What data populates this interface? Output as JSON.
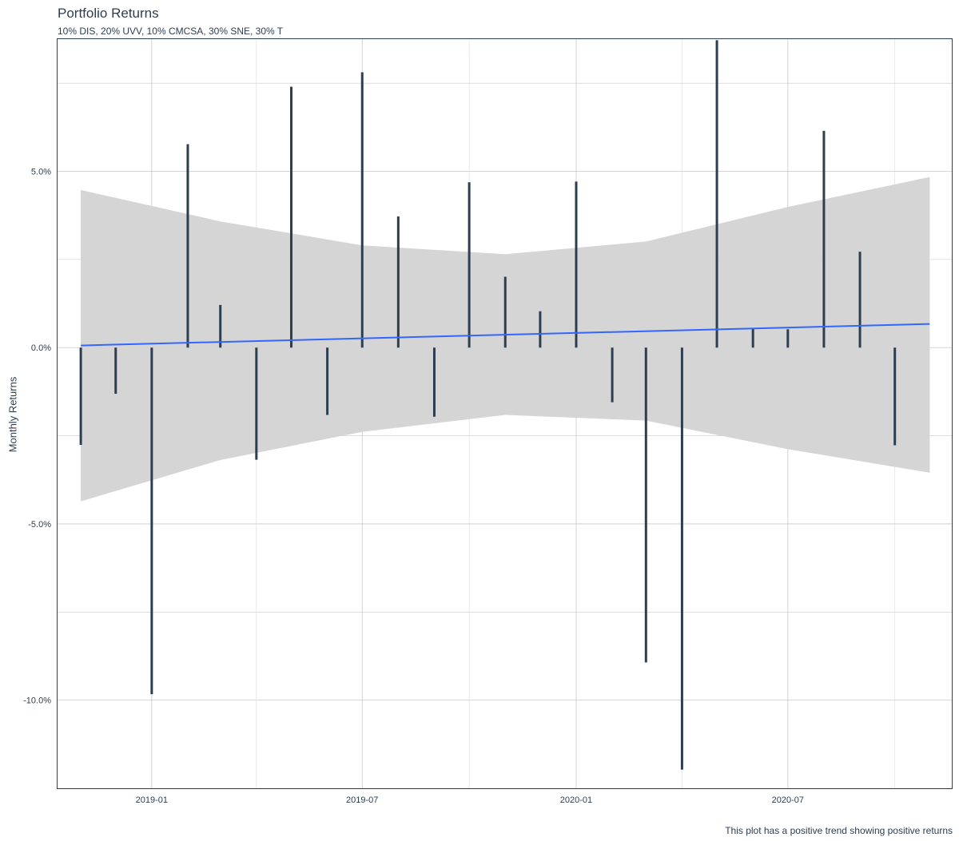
{
  "chart_data": {
    "type": "bar",
    "title": "Portfolio Returns",
    "subtitle": "10% DIS, 20% UVV, 10% CMCSA, 30% SNE, 30% T",
    "ylabel": "Monthly Returns",
    "xlabel": "",
    "caption": "This plot has a positive trend showing positive returns",
    "x_ticks": [
      "2019-01",
      "2019-07",
      "2020-01",
      "2020-07"
    ],
    "y_ticks": [
      "-10.0%",
      "-5.0%",
      "0.0%",
      "5.0%"
    ],
    "ylim": [
      -0.125,
      0.0875
    ],
    "xlim": [
      "2018-10-12",
      "2020-11-19"
    ],
    "grid": true,
    "bar_color": "#2c3e50",
    "trend_color": "#3366ff",
    "ribbon_color": "#d3d3d3",
    "dates": [
      "2018-11-01",
      "2018-12-01",
      "2019-01-01",
      "2019-02-01",
      "2019-03-01",
      "2019-04-01",
      "2019-05-01",
      "2019-06-01",
      "2019-07-01",
      "2019-08-01",
      "2019-09-01",
      "2019-10-01",
      "2019-11-01",
      "2019-12-01",
      "2020-01-01",
      "2020-02-01",
      "2020-03-01",
      "2020-04-01",
      "2020-05-01",
      "2020-06-01",
      "2020-07-01",
      "2020-08-01",
      "2020-09-01",
      "2020-10-01"
    ],
    "values": [
      -0.0276,
      -0.0131,
      -0.0983,
      0.0577,
      0.0121,
      -0.0318,
      0.074,
      -0.0191,
      0.0781,
      0.0372,
      -0.0196,
      0.0469,
      0.0201,
      0.0103,
      0.0471,
      -0.0155,
      -0.0893,
      -0.1197,
      0.0872,
      0.0053,
      0.0052,
      0.0615,
      0.0272,
      -0.0277
    ],
    "trend": {
      "start": {
        "date": "2018-11-01",
        "value": 0.0006
      },
      "end": {
        "date": "2020-10-31",
        "value": 0.0067
      }
    },
    "ribbon": [
      {
        "date": "2018-11-01",
        "upper": 0.0447,
        "lower": -0.0436
      },
      {
        "date": "2019-03-01",
        "upper": 0.0358,
        "lower": -0.0319
      },
      {
        "date": "2019-07-01",
        "upper": 0.029,
        "lower": -0.0239
      },
      {
        "date": "2019-11-01",
        "upper": 0.0265,
        "lower": -0.0191
      },
      {
        "date": "2020-03-01",
        "upper": 0.0301,
        "lower": -0.0207
      },
      {
        "date": "2020-07-01",
        "upper": 0.0399,
        "lower": -0.0288
      },
      {
        "date": "2020-10-31",
        "upper": 0.0484,
        "lower": -0.0355
      }
    ]
  }
}
